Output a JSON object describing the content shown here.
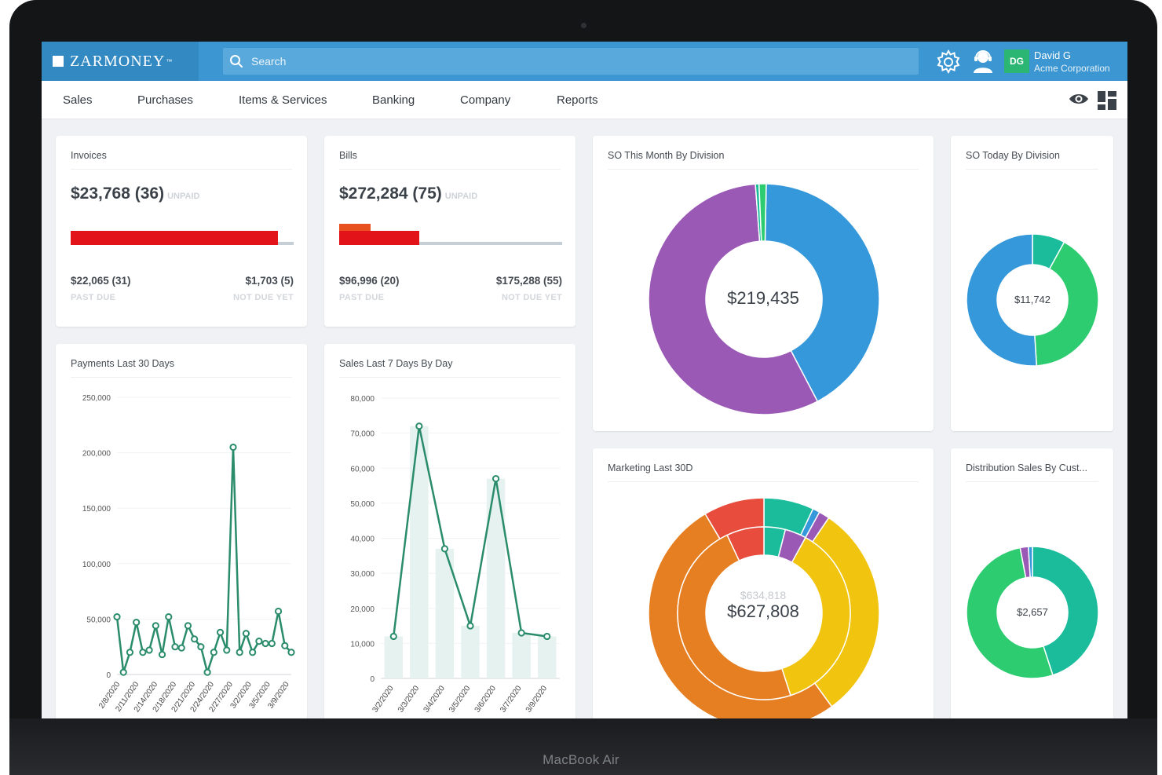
{
  "device": {
    "brand_label": "MacBook Air"
  },
  "app": {
    "logo_text": "ZARMONEY",
    "logo_tm": "™",
    "search_placeholder": "Search",
    "user": {
      "initials": "DG",
      "name": "David G",
      "company": "Acme Corporation"
    }
  },
  "nav": {
    "items": [
      {
        "label": "Sales"
      },
      {
        "label": "Purchases"
      },
      {
        "label": "Items & Services"
      },
      {
        "label": "Banking"
      },
      {
        "label": "Company"
      },
      {
        "label": "Reports"
      }
    ]
  },
  "invoices": {
    "title": "Invoices",
    "amount": "$23,768 (36)",
    "status": "UNPAID",
    "past_due_value": "$22,065 (31)",
    "past_due_label": "PAST DUE",
    "not_due_value": "$1,703 (5)",
    "not_due_label": "NOT DUE YET",
    "past_due_fraction": 0.93
  },
  "bills": {
    "title": "Bills",
    "amount": "$272,284 (75)",
    "status": "UNPAID",
    "past_due_value": "$96,996 (20)",
    "past_due_label": "PAST DUE",
    "not_due_value": "$175,288 (55)",
    "not_due_label": "NOT DUE YET",
    "past_due_fraction": 0.36
  },
  "so_month": {
    "title": "SO This Month By Division",
    "total": "$219,435"
  },
  "so_today": {
    "title": "SO Today By Division",
    "total": "$11,742"
  },
  "marketing": {
    "title": "Marketing Last 30D",
    "prev_total": "$634,818",
    "total": "$627,808"
  },
  "distribution": {
    "title": "Distribution Sales By Cust...",
    "total": "$2,657"
  },
  "payments": {
    "title": "Payments Last 30 Days"
  },
  "sales7": {
    "title": "Sales Last 7 Days By Day"
  },
  "colors": {
    "topbar": "#3b96d1",
    "accent_green": "#2a8c6a",
    "red": "#e2141a",
    "purple": "#9b59b6",
    "blue": "#3498db",
    "green": "#2ecc71",
    "teal": "#1abc9c",
    "orange": "#e67e22",
    "yellow": "#f1c40f",
    "tomato": "#e74c3c"
  },
  "chart_data": [
    {
      "type": "line",
      "title": "Payments Last 30 Days",
      "ylim": [
        0,
        250000
      ],
      "yticks": [
        "0",
        "50,000",
        "100,000",
        "150,000",
        "200,000",
        "250,000"
      ],
      "xtick_labels": [
        "2/8/2020",
        "2/11/2020",
        "2/14/2020",
        "2/18/2020",
        "2/21/2020",
        "2/24/2020",
        "2/27/2020",
        "3/2/2020",
        "3/5/2020",
        "3/9/2020"
      ],
      "values": [
        52000,
        2000,
        20000,
        47000,
        20000,
        22000,
        44000,
        18000,
        52000,
        25000,
        24000,
        44000,
        32000,
        25000,
        2000,
        20000,
        38000,
        22000,
        205000,
        20000,
        37000,
        20000,
        30000,
        28000,
        28000,
        57000,
        26000,
        20000
      ]
    },
    {
      "type": "line",
      "title": "Sales Last 7 Days By Day",
      "ylim": [
        0,
        80000
      ],
      "yticks": [
        "0",
        "10,000",
        "20,000",
        "30,000",
        "40,000",
        "50,000",
        "60,000",
        "70,000",
        "80,000"
      ],
      "categories": [
        "3/2/2020",
        "3/3/2020",
        "3/4/2020",
        "3/5/2020",
        "3/6/2020",
        "3/7/2020",
        "3/9/2020"
      ],
      "values": [
        12000,
        72000,
        37000,
        15000,
        57000,
        13000,
        12000
      ]
    },
    {
      "type": "pie",
      "title": "SO This Month By Division",
      "total": "$219,435",
      "slices": [
        {
          "value": 0.42,
          "color": "#3498db"
        },
        {
          "value": 0.565,
          "color": "#9b59b6"
        },
        {
          "value": 0.005,
          "color": "#1abc9c"
        },
        {
          "value": 0.01,
          "color": "#2ecc71"
        }
      ]
    },
    {
      "type": "pie",
      "title": "SO Today By Division",
      "total": "$11,742",
      "slices": [
        {
          "value": 0.08,
          "color": "#1abc9c"
        },
        {
          "value": 0.41,
          "color": "#2ecc71"
        },
        {
          "value": 0.51,
          "color": "#3498db"
        }
      ]
    },
    {
      "type": "pie",
      "title": "Marketing Last 30D",
      "total": "$627,808",
      "previous_total": "$634,818",
      "outer_slices": [
        {
          "value": 0.07,
          "color": "#1abc9c"
        },
        {
          "value": 0.01,
          "color": "#3498db"
        },
        {
          "value": 0.015,
          "color": "#9b59b6"
        },
        {
          "value": 0.305,
          "color": "#f1c40f"
        },
        {
          "value": 0.515,
          "color": "#e67e22"
        },
        {
          "value": 0.085,
          "color": "#e74c3c"
        }
      ],
      "inner_slices": [
        {
          "value": 0.04,
          "color": "#1abc9c"
        },
        {
          "value": 0.04,
          "color": "#9b59b6"
        },
        {
          "value": 0.37,
          "color": "#f1c40f"
        },
        {
          "value": 0.48,
          "color": "#e67e22"
        },
        {
          "value": 0.07,
          "color": "#e74c3c"
        }
      ]
    },
    {
      "type": "pie",
      "title": "Distribution Sales By Cust...",
      "total": "$2,657",
      "slices": [
        {
          "value": 0.45,
          "color": "#1abc9c"
        },
        {
          "value": 0.52,
          "color": "#2ecc71"
        },
        {
          "value": 0.02,
          "color": "#9b59b6"
        },
        {
          "value": 0.01,
          "color": "#3498db"
        }
      ]
    }
  ]
}
